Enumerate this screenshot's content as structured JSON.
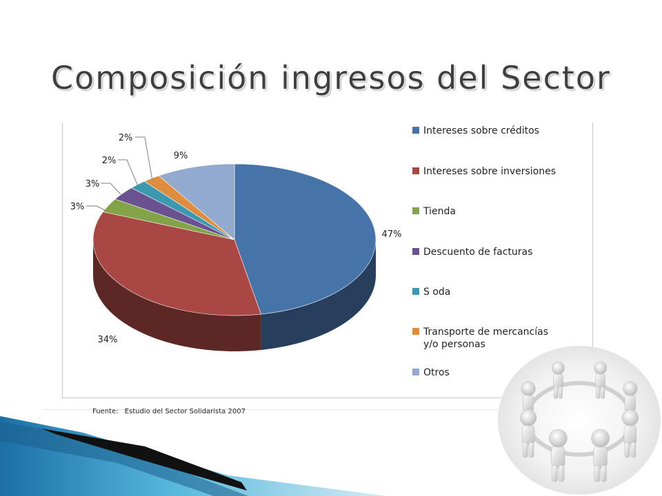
{
  "title": "Composición ingresos del Sector",
  "source": {
    "label": "Fuente:",
    "text": "Estudio del Sector Solidarista 2007"
  },
  "icons": {
    "illustration": "people-circle-icon"
  },
  "chart_data": {
    "type": "pie",
    "style": "3d",
    "legend_position": "right",
    "slices": [
      {
        "label": "Intereses sobre créditos",
        "value": 47,
        "display": "47%",
        "color": "#4673a8"
      },
      {
        "label": "Intereses sobre inversiones",
        "value": 34,
        "display": "34%",
        "color": "#a84744"
      },
      {
        "label": "Tienda",
        "value": 3,
        "display": "3%",
        "color": "#82a348"
      },
      {
        "label": "Descuento de facturas",
        "value": 3,
        "display": "3%",
        "color": "#6a5190"
      },
      {
        "label": "S oda",
        "value": 2,
        "display": "2%",
        "color": "#3c98ae"
      },
      {
        "label": "Transporte de mercancías y/o personas",
        "value": 2,
        "display": "2%",
        "color": "#de8c3d"
      },
      {
        "label": "Otros",
        "value": 9,
        "display": "9%",
        "color": "#92a9d0"
      }
    ]
  }
}
